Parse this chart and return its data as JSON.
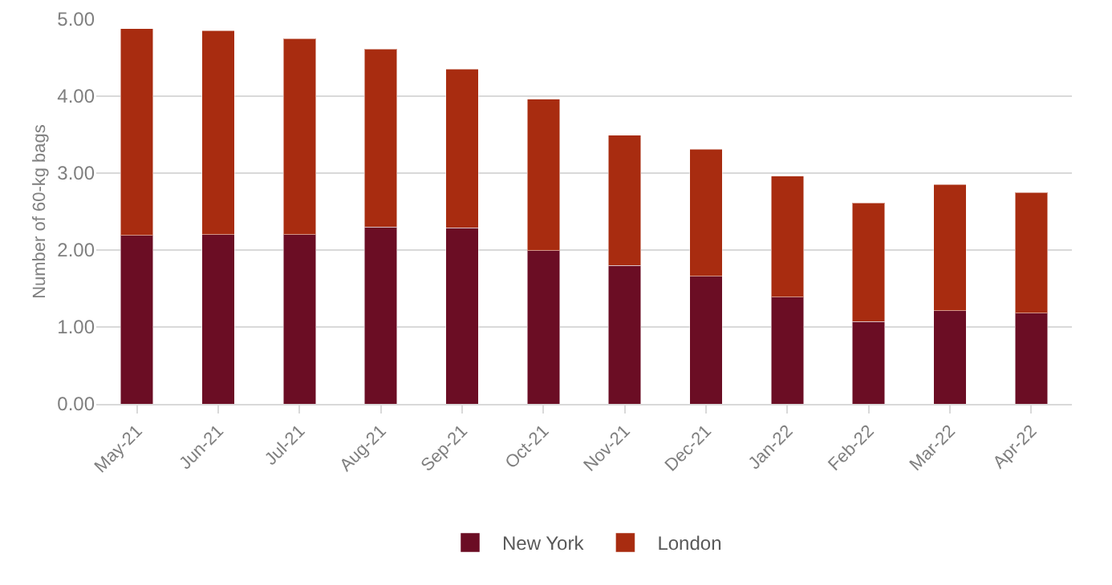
{
  "chart_data": {
    "type": "bar",
    "stacked": true,
    "ylabel": "Number of 60-kg bags",
    "categories": [
      "May-21",
      "Jun-21",
      "Jul-21",
      "Aug-21",
      "Sep-21",
      "Oct-21",
      "Nov-21",
      "Dec-21",
      "Jan-22",
      "Feb-22",
      "Mar-22",
      "Apr-22"
    ],
    "series": [
      {
        "name": "New York",
        "color": "#6b0d24",
        "values": [
          2.19,
          2.2,
          2.2,
          2.3,
          2.29,
          1.99,
          1.8,
          1.66,
          1.39,
          1.07,
          1.21,
          1.18
        ]
      },
      {
        "name": "London",
        "color": "#a82c10",
        "values": [
          2.69,
          2.65,
          2.55,
          2.31,
          2.06,
          1.97,
          1.69,
          1.65,
          1.57,
          1.54,
          1.64,
          1.57
        ]
      }
    ],
    "ylim": [
      0,
      5
    ],
    "yticks": [
      {
        "value": 0,
        "label": "0.00"
      },
      {
        "value": 1,
        "label": "1.00"
      },
      {
        "value": 2,
        "label": "2.00"
      },
      {
        "value": 3,
        "label": "3.00"
      },
      {
        "value": 4,
        "label": "4.00"
      },
      {
        "value": 5,
        "label": "5.00"
      }
    ],
    "grid": "y",
    "legend": "bottom"
  }
}
